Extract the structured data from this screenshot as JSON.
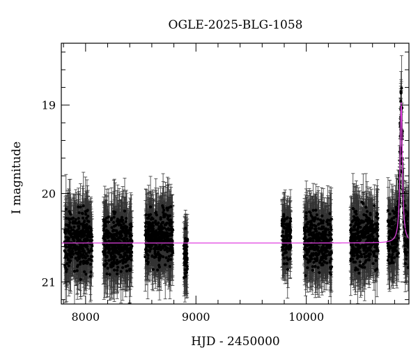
{
  "chart_data": {
    "type": "scatter",
    "title": "OGLE-2025-BLG-1058",
    "xlabel": "HJD - 2450000",
    "ylabel": "I magnitude",
    "xlim": [
      7780,
      10930
    ],
    "ylim": [
      21.25,
      18.3
    ],
    "y_inverted": true,
    "x_ticks": [
      8000,
      9000,
      10000
    ],
    "y_ticks": [
      19,
      20,
      21
    ],
    "grid": false,
    "colors": {
      "data": "#000000",
      "model": "#e040e0",
      "axes": "#000000"
    },
    "observing_seasons": [
      {
        "x_range": [
          7810,
          8060
        ],
        "mag_center": 20.55,
        "mag_scatter": 0.45,
        "mag_err": 0.33
      },
      {
        "x_range": [
          8160,
          8420
        ],
        "mag_center": 20.55,
        "mag_scatter": 0.45,
        "mag_err": 0.33
      },
      {
        "x_range": [
          8540,
          8790
        ],
        "mag_center": 20.5,
        "mag_scatter": 0.45,
        "mag_err": 0.33
      },
      {
        "x_range": [
          8890,
          8925
        ],
        "mag_center": 20.7,
        "mag_scatter": 0.4,
        "mag_err": 0.3
      },
      {
        "x_range": [
          9780,
          9860
        ],
        "mag_center": 20.5,
        "mag_scatter": 0.45,
        "mag_err": 0.3
      },
      {
        "x_range": [
          9980,
          10230
        ],
        "mag_center": 20.55,
        "mag_scatter": 0.45,
        "mag_err": 0.33
      },
      {
        "x_range": [
          10400,
          10650
        ],
        "mag_center": 20.5,
        "mag_scatter": 0.45,
        "mag_err": 0.33
      },
      {
        "x_range": [
          10740,
          10930
        ],
        "mag_center": 20.5,
        "mag_scatter": 0.45,
        "mag_err": 0.33
      }
    ],
    "model": {
      "name": "",
      "baseline_mag": 20.56,
      "peak_x": 10860,
      "peak_mag": 18.97,
      "timescale_days": 25
    }
  }
}
